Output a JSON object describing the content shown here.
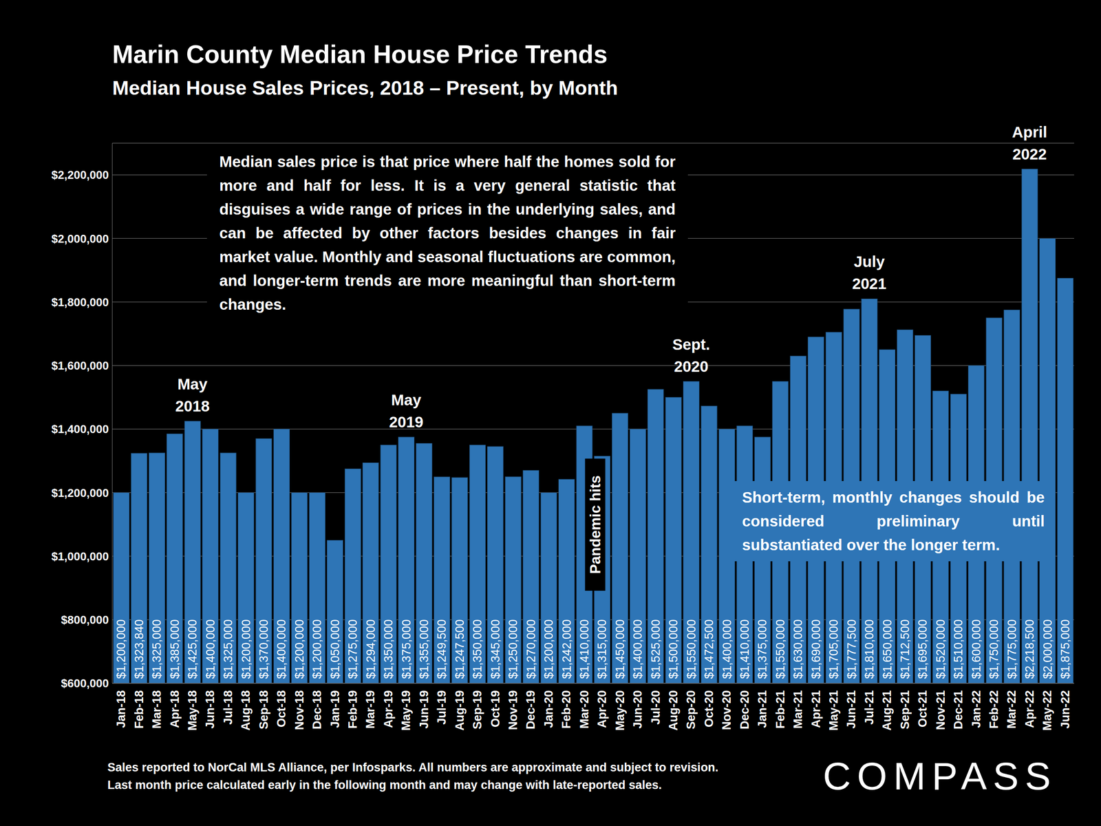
{
  "chart_data": {
    "type": "bar",
    "title": "Marin County Median House Price Trends",
    "subtitle": "Median House Sales Prices, 2018 – Present, by Month",
    "categories": [
      "Jan-18",
      "Feb-18",
      "Mar-18",
      "Apr-18",
      "May-18",
      "Jun-18",
      "Jul-18",
      "Aug-18",
      "Sep-18",
      "Oct-18",
      "Nov-18",
      "Dec-18",
      "Jan-19",
      "Feb-19",
      "Mar-19",
      "Apr-19",
      "May-19",
      "Jun-19",
      "Jul-19",
      "Aug-19",
      "Sep-19",
      "Oct-19",
      "Nov-19",
      "Dec-19",
      "Jan-20",
      "Feb-20",
      "Mar-20",
      "Apr-20",
      "May-20",
      "Jun-20",
      "Jul-20",
      "Aug-20",
      "Sep-20",
      "Oct-20",
      "Nov-20",
      "Dec-20",
      "Jan-21",
      "Feb-21",
      "Mar-21",
      "Apr-21",
      "May-21",
      "Jun-21",
      "Jul-21",
      "Aug-21",
      "Sep-21",
      "Oct-21",
      "Nov-21",
      "Dec-21",
      "Jan-22",
      "Feb-22",
      "Mar-22",
      "Apr-22",
      "May-22",
      "Jun-22"
    ],
    "values": [
      1200000,
      1323840,
      1325000,
      1385000,
      1425000,
      1400000,
      1325000,
      1200000,
      1370000,
      1400000,
      1200000,
      1200000,
      1050000,
      1275000,
      1294000,
      1350000,
      1375000,
      1355000,
      1249500,
      1247500,
      1350000,
      1345000,
      1250000,
      1270000,
      1200000,
      1242000,
      1410000,
      1315000,
      1450000,
      1400000,
      1525000,
      1500000,
      1550000,
      1472500,
      1400000,
      1410000,
      1375000,
      1550000,
      1630000,
      1690000,
      1705000,
      1777500,
      1810000,
      1650000,
      1712500,
      1695000,
      1520000,
      1510000,
      1600000,
      1750000,
      1775000,
      2218500,
      2000000,
      1875000
    ],
    "value_labels": [
      "$1,200,000",
      "$1,323,840",
      "$1,325,000",
      "$1,385,000",
      "$1,425,000",
      "$1,400,000",
      "$1,325,000",
      "$1,200,000",
      "$1,370,000",
      "$1,400,000",
      "$1,200,000",
      "$1,200,000",
      "$1,050,000",
      "$1,275,000",
      "$1,294,000",
      "$1,350,000",
      "$1,375,000",
      "$1,355,000",
      "$1,249,500",
      "$1,247,500",
      "$1,350,000",
      "$1,345,000",
      "$1,250,000",
      "$1,270,000",
      "$1,200,000",
      "$1,242,000",
      "$1,410,000",
      "$1,315,000",
      "$1,450,000",
      "$1,400,000",
      "$1,525,000",
      "$1,500,000",
      "$1,550,000",
      "$1,472,500",
      "$1,400,000",
      "$1,410,000",
      "$1,375,000",
      "$1,550,000",
      "$1,630,000",
      "$1,690,000",
      "$1,705,000",
      "$1,777,500",
      "$1,810,000",
      "$1,650,000",
      "$1,712,500",
      "$1,695,000",
      "$1,520,000",
      "$1,510,000",
      "$1,600,000",
      "$1,750,000",
      "$1,775,000",
      "$2,218,500",
      "$2,000,000",
      "$1,875,000"
    ],
    "color": "#2e75b6",
    "ylim": [
      600000,
      2300000
    ],
    "yticks": [
      {
        "value": 600000,
        "label": "$600,000"
      },
      {
        "value": 800000,
        "label": "$800,000"
      },
      {
        "value": 1000000,
        "label": "$1,000,000"
      },
      {
        "value": 1200000,
        "label": "$1,200,000"
      },
      {
        "value": 1400000,
        "label": "$1,400,000"
      },
      {
        "value": 1600000,
        "label": "$1,600,000"
      },
      {
        "value": 1800000,
        "label": "$1,800,000"
      },
      {
        "value": 2000000,
        "label": "$2,000,000"
      },
      {
        "value": 2200000,
        "label": "$2,200,000"
      }
    ],
    "grid": true,
    "data_labels": true,
    "annotations": [
      {
        "category": "May-18",
        "lines": [
          "May",
          "2018"
        ]
      },
      {
        "category": "May-19",
        "lines": [
          "May",
          "2019"
        ]
      },
      {
        "category": "Sep-20",
        "lines": [
          "Sept.",
          "2020"
        ]
      },
      {
        "category": "Jul-21",
        "lines": [
          "July",
          "2021"
        ]
      },
      {
        "category": "Apr-22",
        "lines": [
          "April",
          "2022"
        ]
      }
    ],
    "markers": [
      {
        "category": "Apr-20",
        "text": "Pandemic hits"
      }
    ],
    "notes": [
      "Median sales price is that price where half the homes sold for more and half for less. It is a very general statistic that disguises a wide range of prices in the underlying sales, and can be affected by other factors besides changes in fair market value. Monthly and seasonal fluctuations are common, and longer-term trends are more meaningful than short-term changes.",
      "Short-term, monthly changes should be considered preliminary until substantiated over the longer term."
    ],
    "footnotes": [
      "Sales reported to NorCal MLS Alliance, per Infosparks. All numbers are approximate and subject to revision.",
      "Last month price calculated early in the following month and may change with late-reported sales."
    ],
    "brand": "COMPASS"
  }
}
